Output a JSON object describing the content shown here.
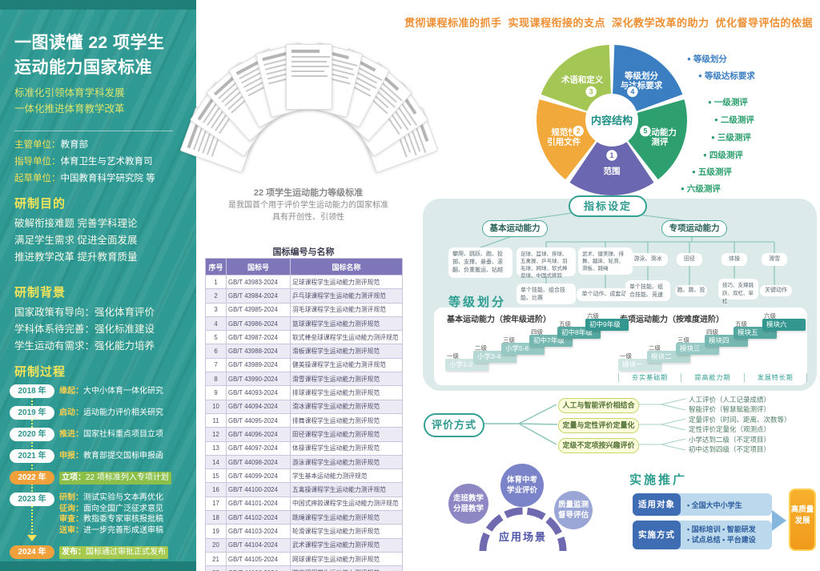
{
  "sidebar": {
    "title": [
      "一图读懂 22 项学生",
      "运动能力国家标准"
    ],
    "subtitle": [
      "标准化引领体育学科发展",
      "一体化推进体育教学改革"
    ],
    "orgs": [
      {
        "label": "主管单位：",
        "value": "教育部"
      },
      {
        "label": "指导单位：",
        "value": "体育卫生与艺术教育司"
      },
      {
        "label": "起草单位：",
        "value": "中国教育科学研究院 等"
      }
    ],
    "purpose": {
      "heading": "研制目的",
      "lines": [
        "破解衔接难题 完善学科理论",
        "满足学生需求 促进全面发展",
        "推进教学改革 提升教育质量"
      ]
    },
    "background": {
      "heading": "研制背景",
      "lines": [
        "国家政策有导向：强化体育评价",
        "学科体系待完善：强化标准建设",
        "学生运动有需求：强化能力培养"
      ]
    },
    "process": {
      "heading": "研制过程",
      "items": [
        {
          "year": "2018 年",
          "highlight": false,
          "entries": [
            {
              "tag": "缘起：",
              "text": "大中小体育一体化研究"
            }
          ]
        },
        {
          "year": "2019 年",
          "highlight": false,
          "entries": [
            {
              "tag": "启动：",
              "text": "运动能力评价相关研究"
            }
          ]
        },
        {
          "year": "2020 年",
          "highlight": false,
          "entries": [
            {
              "tag": "推进：",
              "text": "国家社科重点项目立项"
            }
          ]
        },
        {
          "year": "2021 年",
          "highlight": false,
          "entries": [
            {
              "tag": "申报：",
              "text": "教育部提交国标申报函"
            }
          ]
        },
        {
          "year": "2022 年",
          "highlight": true,
          "bar_color": "#8bbf4a",
          "entries": [
            {
              "tag": "立项：",
              "text": "22 项标准列入专项计划"
            }
          ]
        },
        {
          "year": "2023 年",
          "highlight": false,
          "entries": [
            {
              "tag": "研制：",
              "text": "测试实验与文本再优化"
            },
            {
              "tag": "征询：",
              "text": "面向全国广泛征求意见"
            },
            {
              "tag": "审查：",
              "text": "教指委专家审核报批稿"
            },
            {
              "tag": "送审：",
              "text": "进一步完善形成送审稿"
            }
          ]
        },
        {
          "year": "2024 年",
          "highlight": true,
          "bar_color": "#a6c94f",
          "entries": [
            {
              "tag": "发布：",
              "text": "国标通过审批正式发布"
            }
          ]
        }
      ]
    }
  },
  "center": {
    "caption": [
      "22 项学生运动能力等级标准",
      "是我国首个用于评价学生运动能力的国家标准",
      "具有开创性、引领性"
    ],
    "table": {
      "title": "国标编号与名称",
      "headers": [
        "序号",
        "国标号",
        "国标名称"
      ],
      "rows": [
        [
          "1",
          "GB/T 43983-2024",
          "足球课程学生运动能力测评规范"
        ],
        [
          "2",
          "GB/T 43984-2024",
          "乒乓球课程学生运动能力测评规范"
        ],
        [
          "3",
          "GB/T 43985-2024",
          "羽毛球课程学生运动能力测评规范"
        ],
        [
          "4",
          "GB/T 43986-2024",
          "篮球课程学生运动能力测评规范"
        ],
        [
          "5",
          "GB/T 43987-2024",
          "软式棒垒球课程学生运动能力测评规范"
        ],
        [
          "6",
          "GB/T 43988-2024",
          "滑板课程学生运动能力测评规范"
        ],
        [
          "7",
          "GB/T 43989-2024",
          "健美操课程学生运动能力测评规范"
        ],
        [
          "8",
          "GB/T 43990-2024",
          "滑雪课程学生运动能力测评规范"
        ],
        [
          "9",
          "GB/T 44093-2024",
          "排球课程学生运动能力测评规范"
        ],
        [
          "10",
          "GB/T 44094-2024",
          "滑冰课程学生运动能力测评规范"
        ],
        [
          "11",
          "GB/T 44095-2024",
          "排舞课程学生运动能力测评规范"
        ],
        [
          "12",
          "GB/T 44096-2024",
          "田径课程学生运动能力测评规范"
        ],
        [
          "13",
          "GB/T 44097-2024",
          "体操课程学生运动能力测评规范"
        ],
        [
          "14",
          "GB/T 44098-2024",
          "游泳课程学生运动能力测评规范"
        ],
        [
          "15",
          "GB/T 44099-2024",
          "学生基本运动能力测评规范"
        ],
        [
          "16",
          "GB/T 44100-2024",
          "五禽操课程学生运动能力测评规范"
        ],
        [
          "17",
          "GB/T 44101-2024",
          "中国式摔跤课程学生运动能力测评规范"
        ],
        [
          "18",
          "GB/T 44102-2024",
          "跳绳课程学生运动能力测评规范"
        ],
        [
          "19",
          "GB/T 44103-2024",
          "轮滑课程学生运动能力测评规范"
        ],
        [
          "20",
          "GB/T 44104-2024",
          "武术课程学生运动能力测评规范"
        ],
        [
          "21",
          "GB/T 44105-2024",
          "网球课程学生运动能力测评规范"
        ],
        [
          "22",
          "GB/T 44106-2024",
          "蹦床课程学生运动能力测评规范"
        ]
      ]
    }
  },
  "top_slogans": [
    "贯彻课程标准的抓手",
    "实现课程衔接的支点",
    "深化教学改革的助力",
    "优化督导评估的依据"
  ],
  "donut": {
    "center_label": "内容结构",
    "segments": [
      {
        "num": "1",
        "label": [
          "范围"
        ],
        "color": "#6b68b1"
      },
      {
        "num": "2",
        "label": [
          "规范性",
          "引用文件"
        ],
        "color": "#f2a93b"
      },
      {
        "num": "3",
        "label": [
          "术语和定义"
        ],
        "color": "#a3c655"
      },
      {
        "num": "4",
        "label": [
          "等级划分",
          "与达标要求"
        ],
        "color": "#3b7ec2"
      },
      {
        "num": "5",
        "label": [
          "运动能力",
          "测评"
        ],
        "color": "#2ea06f"
      }
    ],
    "legend_blue": [
      "等级划分",
      "等级达标要求"
    ],
    "legend_green": [
      "一级测评",
      "二级测评",
      "三级测评",
      "四级测评",
      "五级测评",
      "六级测评"
    ],
    "legend_blue_color": "#3b7ec2",
    "legend_green_color": "#2ea06f"
  },
  "indicators": {
    "badge": "指标设定",
    "basic_label": "基本运动能力",
    "special_label": "专项运动能力",
    "basic_items": "攀爬、跳跃、跑、投掷、支撑、悬垂、滚翻、负重搬运、钻越",
    "groups": [
      {
        "items": "足球、篮球、排球、五禽操、乒乓球、羽毛球、网球、软式棒垒球、中国式摔跤",
        "sub": "单个技能、组合技能、比赛"
      },
      {
        "items": "武术、健美操、排舞、蹦床、轮滑、滑板、跳绳",
        "sub": "单个动作、成套动作"
      },
      {
        "items": "游泳、滑冰",
        "sub": "单个技能、组合技能、竞速"
      },
      {
        "items": "田径",
        "sub": "跑、跳、投"
      },
      {
        "items": "体操",
        "sub": "技巧、支撑跳跃、双杠、单杠"
      },
      {
        "items": "滑雪",
        "sub": "关键动作"
      }
    ]
  },
  "grading": {
    "heading": "等级划分",
    "left": {
      "title": "基本运动能力（按年级进阶）",
      "levels": [
        "一级",
        "二级",
        "三级",
        "四级",
        "五级",
        "六级"
      ],
      "stages": [
        "小学1-2",
        "小学3-4",
        "小学5-6",
        "初中7年级",
        "初中8年级",
        "初中9年级"
      ]
    },
    "right": {
      "title": "专项运动能力（按难度进阶）",
      "levels": [
        "一级",
        "二级",
        "三级",
        "四级",
        "五级",
        "六级"
      ],
      "stages": [
        "模块一",
        "模块二",
        "模块三",
        "模块四",
        "模块五",
        "模块六"
      ],
      "phases": [
        "夯实基础期",
        "提高能力期",
        "发展特长期"
      ]
    }
  },
  "evaluation": {
    "root": "评价方式",
    "branches": [
      {
        "label": "人工与智能评价相结合",
        "notes": [
          "人工评价（人工记录成绩）",
          "智能评价（智慧赋能测评）"
        ]
      },
      {
        "label": "定量与定性评价定量化",
        "notes": [
          "定量评价（时间、距离、次数等）",
          "定性评价定量化（观测点）"
        ]
      },
      {
        "label": "定级不定项按兴趣评价",
        "notes": [
          "小学达到二级（不定项目）",
          "初中达到四级（不定项目）"
        ]
      }
    ]
  },
  "application": {
    "title": "应用场景",
    "circles": [
      {
        "lines": [
          "走班教学",
          "分层教学"
        ],
        "color": "#8d88c4"
      },
      {
        "lines": [
          "体育中考",
          "学业评价"
        ],
        "color": "#7b84c8"
      },
      {
        "lines": [
          "质量监测",
          "督导评估"
        ],
        "color": "#9aa6d6"
      }
    ]
  },
  "implementation": {
    "heading": "实施推广",
    "rows": [
      {
        "label": "适用对象",
        "lines": [
          "• 全国大中小学生"
        ]
      },
      {
        "label": "实施方式",
        "lines": [
          "• 国标培训 • 智能研发",
          "• 试点总结 • 平台建设"
        ]
      }
    ],
    "result": [
      "高质量",
      "发展"
    ]
  }
}
